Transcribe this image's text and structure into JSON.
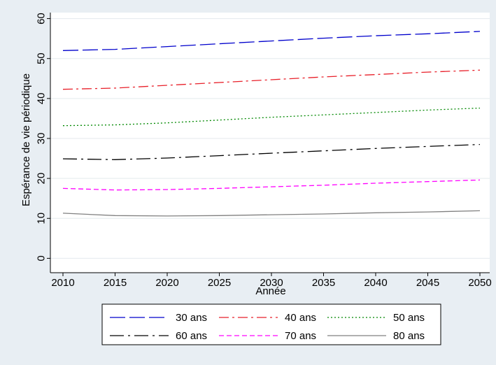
{
  "chart_data": {
    "type": "line",
    "title": "",
    "xlabel": "Année",
    "ylabel": "Espérance de vie périodique",
    "xlim": [
      2010,
      2050
    ],
    "ylim": [
      0,
      60
    ],
    "x_ticks": [
      "2010",
      "2015",
      "2020",
      "2025",
      "2030",
      "2035",
      "2040",
      "2045",
      "2050"
    ],
    "y_ticks": [
      "0",
      "10",
      "20",
      "30",
      "40",
      "50",
      "60"
    ],
    "grid": "horizontal",
    "legend_position": "bottom",
    "x": [
      2010,
      2015,
      2020,
      2025,
      2030,
      2035,
      2040,
      2045,
      2050
    ],
    "series": [
      {
        "name": "30 ans",
        "color": "#0000cc",
        "dash": "long-dash",
        "values": [
          52.0,
          52.3,
          53.0,
          53.7,
          54.4,
          55.1,
          55.7,
          56.2,
          56.8
        ]
      },
      {
        "name": "40 ans",
        "color": "#e8202a",
        "dash": "dash-dot",
        "values": [
          42.3,
          42.6,
          43.3,
          44.0,
          44.7,
          45.4,
          46.0,
          46.6,
          47.1
        ]
      },
      {
        "name": "50 ans",
        "color": "#008800",
        "dash": "dotted",
        "values": [
          33.2,
          33.4,
          33.9,
          34.6,
          35.3,
          35.9,
          36.5,
          37.1,
          37.6
        ]
      },
      {
        "name": "60 ans",
        "color": "#000000",
        "dash": "long-dash-dot",
        "values": [
          24.9,
          24.7,
          25.1,
          25.7,
          26.3,
          26.9,
          27.5,
          28.0,
          28.5
        ]
      },
      {
        "name": "70 ans",
        "color": "#ff00ff",
        "dash": "short-dash",
        "values": [
          17.5,
          17.1,
          17.2,
          17.5,
          17.9,
          18.3,
          18.8,
          19.2,
          19.6
        ]
      },
      {
        "name": "80 ans",
        "color": "#808080",
        "dash": "solid",
        "values": [
          11.3,
          10.7,
          10.6,
          10.7,
          10.9,
          11.1,
          11.4,
          11.6,
          11.9
        ]
      }
    ]
  }
}
